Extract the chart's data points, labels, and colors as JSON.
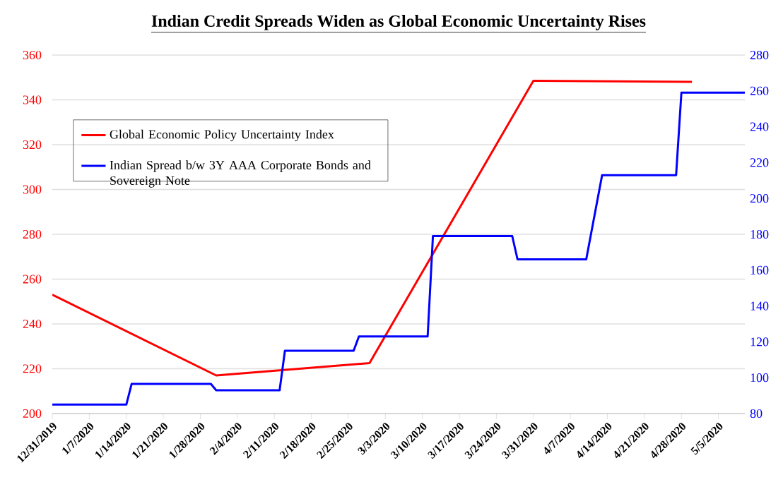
{
  "chart_data": {
    "type": "line",
    "title": "Indian Credit Spreads Widen as Global Economic Uncertainty Rises",
    "xlim": [
      "2019-12-31",
      "2020-05-10"
    ],
    "xticks": [
      {
        "value": "2019-12-31",
        "label": "12/31/2019"
      },
      {
        "value": "2020-01-07",
        "label": "1/7/2020"
      },
      {
        "value": "2020-01-14",
        "label": "1/14/2020"
      },
      {
        "value": "2020-01-21",
        "label": "1/21/2020"
      },
      {
        "value": "2020-01-28",
        "label": "1/28/2020"
      },
      {
        "value": "2020-02-04",
        "label": "2/4/2020"
      },
      {
        "value": "2020-02-11",
        "label": "2/11/2020"
      },
      {
        "value": "2020-02-18",
        "label": "2/18/2020"
      },
      {
        "value": "2020-02-25",
        "label": "2/25/2020"
      },
      {
        "value": "2020-03-03",
        "label": "3/3/2020"
      },
      {
        "value": "2020-03-10",
        "label": "3/10/2020"
      },
      {
        "value": "2020-03-17",
        "label": "3/17/2020"
      },
      {
        "value": "2020-03-24",
        "label": "3/24/2020"
      },
      {
        "value": "2020-03-31",
        "label": "3/31/2020"
      },
      {
        "value": "2020-04-07",
        "label": "4/7/2020"
      },
      {
        "value": "2020-04-14",
        "label": "4/14/2020"
      },
      {
        "value": "2020-04-21",
        "label": "4/21/2020"
      },
      {
        "value": "2020-04-28",
        "label": "4/28/2020"
      },
      {
        "value": "2020-05-05",
        "label": "5/5/2020"
      }
    ],
    "ylim": [
      200,
      360
    ],
    "yticks": [
      200,
      220,
      240,
      260,
      280,
      300,
      320,
      340,
      360
    ],
    "y2lim": [
      80,
      280
    ],
    "y2ticks": [
      80,
      100,
      120,
      140,
      160,
      180,
      200,
      220,
      240,
      260,
      280
    ],
    "grid": "y",
    "legend": "top left",
    "series": [
      {
        "name": "Global Economic Policy Uncertainty Index",
        "color": "#ff0000",
        "x": [
          "2019-12-31",
          "2020-01-31",
          "2020-02-29",
          "2020-03-31",
          "2020-04-30"
        ],
        "values": [
          253,
          217,
          222.5,
          348.5,
          348
        ]
      },
      {
        "name": "Indian Spread b/w 3Y AAA Corporate Bonds and Sovereign Note",
        "color": "#0000ff",
        "axis": "y2",
        "x": [
          "2019-12-31",
          "2020-01-14",
          "2020-01-15",
          "2020-01-30",
          "2020-01-31",
          "2020-02-12",
          "2020-02-13",
          "2020-02-26",
          "2020-02-27",
          "2020-03-11",
          "2020-03-12",
          "2020-03-27",
          "2020-03-28",
          "2020-04-10",
          "2020-04-13",
          "2020-04-27",
          "2020-04-28",
          "2020-05-10"
        ],
        "values": [
          85,
          85,
          96.5,
          96.5,
          93,
          93,
          115,
          115,
          123,
          123,
          179,
          179,
          166,
          166,
          213,
          213,
          259,
          259
        ]
      }
    ]
  }
}
